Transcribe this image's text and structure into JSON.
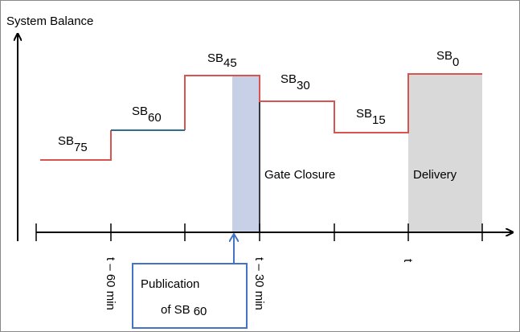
{
  "header": {
    "title": "System Balance"
  },
  "levels": [
    {
      "label": "SB",
      "subscript": "75"
    },
    {
      "label": "SB",
      "subscript": "60"
    },
    {
      "label": "SB",
      "subscript": "45"
    },
    {
      "label": "SB",
      "subscript": "30"
    },
    {
      "label": "SB",
      "subscript": "15"
    },
    {
      "label": "SB",
      "subscript": "0"
    }
  ],
  "regions": {
    "gate_closure": "Gate Closure",
    "delivery": "Delivery"
  },
  "time_labels": [
    "t – 60 min",
    "t – 30 min",
    "t"
  ],
  "publication": {
    "line1": "Publication",
    "line2": "of SB",
    "subscript": "60"
  }
}
